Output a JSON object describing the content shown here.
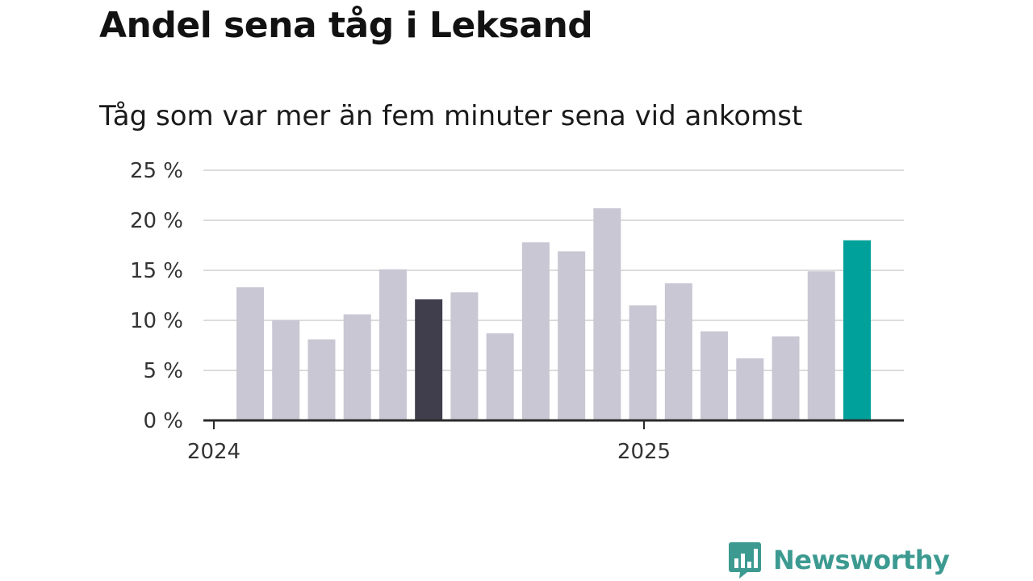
{
  "chart_data": {
    "type": "bar",
    "title": "Andel sena tåg i Leksand",
    "subtitle": "Tåg som var mer än fem minuter sena vid ankomst",
    "xlabel": "",
    "ylabel": "",
    "ylim": [
      0,
      25
    ],
    "yticks": [
      0,
      5,
      10,
      15,
      20,
      25
    ],
    "ytick_labels": [
      "0 %",
      "5 %",
      "10 %",
      "15 %",
      "20 %",
      "25 %"
    ],
    "xtick_labels": [
      "2024",
      "2025"
    ],
    "grid": true,
    "bars": [
      {
        "value": 13.3,
        "color": "#c8c7d3"
      },
      {
        "value": 10.0,
        "color": "#c8c7d3"
      },
      {
        "value": 8.1,
        "color": "#c8c7d3"
      },
      {
        "value": 10.6,
        "color": "#c8c7d3"
      },
      {
        "value": 15.1,
        "color": "#c8c7d3"
      },
      {
        "value": 12.1,
        "color": "#403e4d"
      },
      {
        "value": 12.8,
        "color": "#c8c7d3"
      },
      {
        "value": 8.7,
        "color": "#c8c7d3"
      },
      {
        "value": 17.8,
        "color": "#c8c7d3"
      },
      {
        "value": 16.9,
        "color": "#c8c7d3"
      },
      {
        "value": 21.2,
        "color": "#c8c7d3"
      },
      {
        "value": 11.5,
        "color": "#c8c7d3"
      },
      {
        "value": 13.7,
        "color": "#c8c7d3"
      },
      {
        "value": 8.9,
        "color": "#c8c7d3"
      },
      {
        "value": 6.2,
        "color": "#c8c7d3"
      },
      {
        "value": 8.4,
        "color": "#c8c7d3"
      },
      {
        "value": 14.9,
        "color": "#c8c7d3"
      },
      {
        "value": 18.0,
        "color": "#00a19a"
      }
    ]
  },
  "branding": {
    "logo_text": "Newsworthy",
    "logo_color": "#3c9a91",
    "logo_icon": "bar-chart-speech-bubble-icon"
  }
}
